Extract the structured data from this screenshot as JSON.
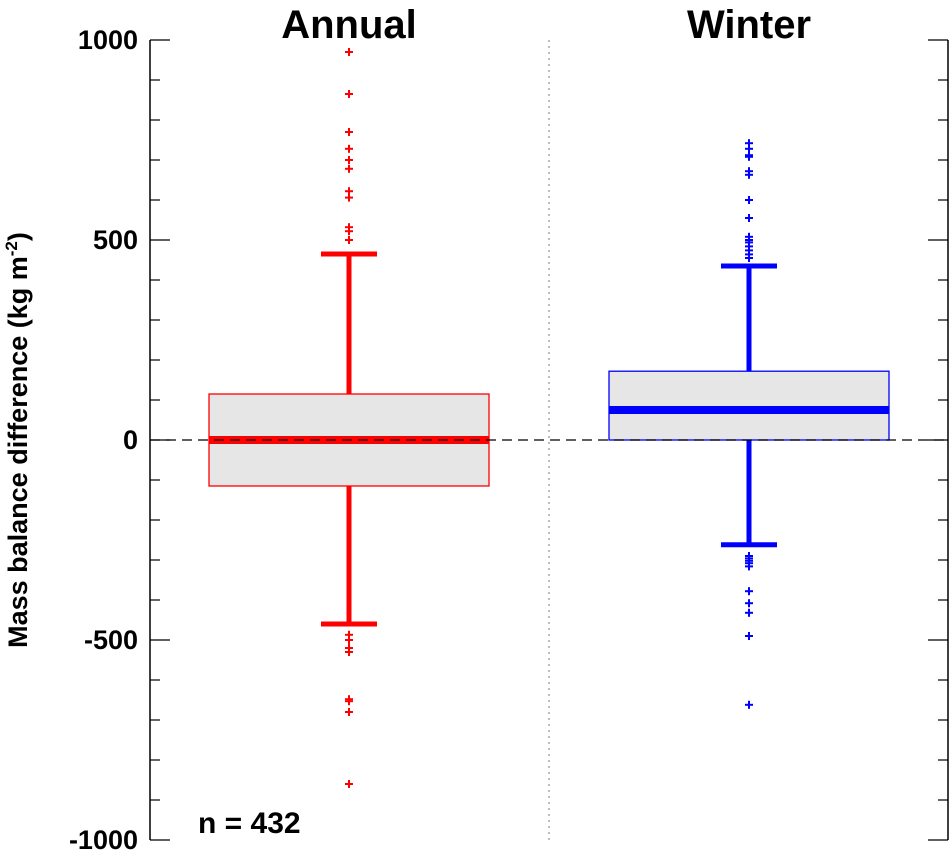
{
  "chart_data": {
    "type": "box",
    "ylabel": "Mass balance difference (kg m",
    "ylabel_sup": "-2",
    "ylabel_end": ")",
    "ylim": [
      -1000,
      1000
    ],
    "yticks": [
      -1000,
      -500,
      0,
      500,
      1000
    ],
    "ytick_labels": [
      "-1000",
      "-500",
      "0",
      "500",
      "1000"
    ],
    "y_minor_step": 100,
    "zero_line": "dashed",
    "separator": "dotted",
    "annotation": "n = 432",
    "panels": [
      {
        "title": "Annual",
        "color": "#ff0000",
        "box_fill": "#e6e6e6",
        "q1": -115,
        "median": 0,
        "q3": 115,
        "whisker_low": -460,
        "whisker_high": 465,
        "outliers": [
          970,
          865,
          770,
          728,
          700,
          678,
          622,
          606,
          532,
          522,
          500,
          -487,
          -500,
          -520,
          -530,
          -648,
          -653,
          -680,
          -860
        ]
      },
      {
        "title": "Winter",
        "color": "#0000ff",
        "box_fill": "#e6e6e6",
        "q1": 0,
        "median": 75,
        "q3": 172,
        "whisker_low": -262,
        "whisker_high": 435,
        "outliers": [
          742,
          728,
          712,
          708,
          672,
          663,
          600,
          555,
          508,
          500,
          494,
          484,
          474,
          464,
          455,
          -290,
          -296,
          -302,
          -308,
          -316,
          -378,
          -408,
          -432,
          -490,
          -662
        ]
      }
    ]
  }
}
